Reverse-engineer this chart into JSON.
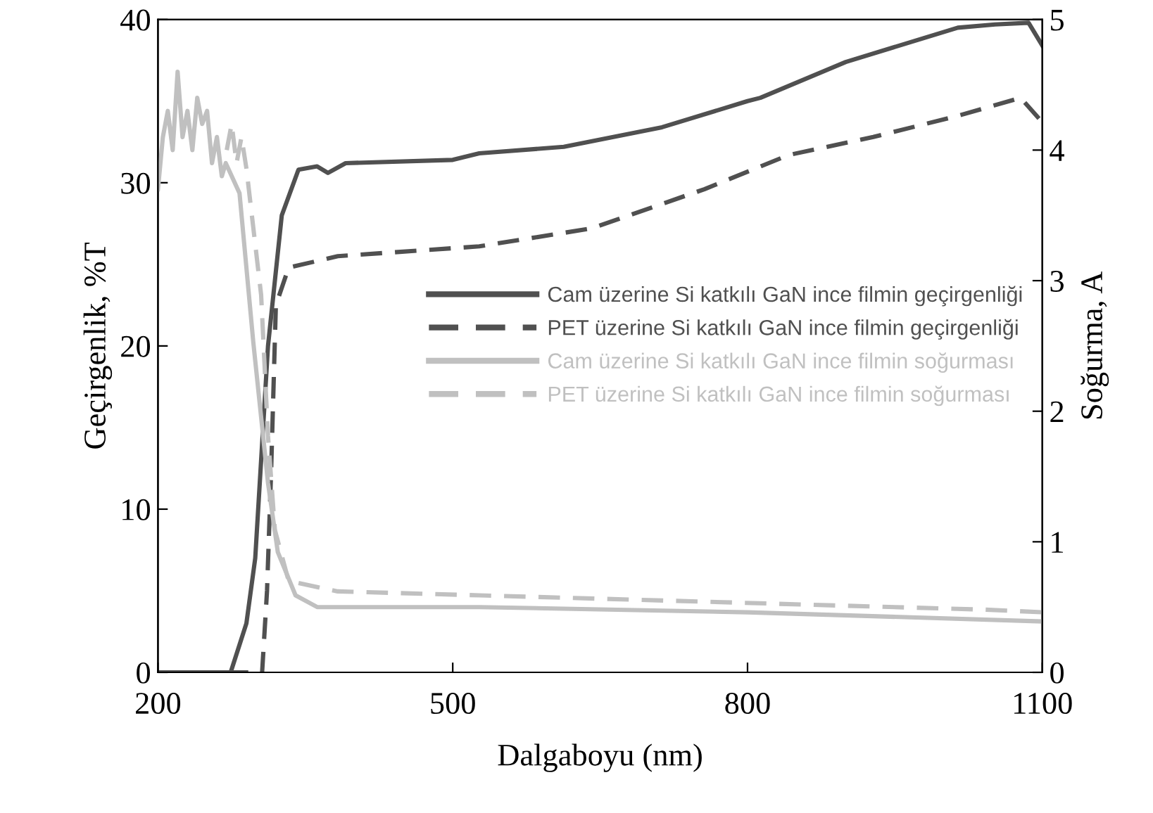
{
  "chart_data": {
    "type": "line",
    "xlabel": "Dalgaboyu (nm)",
    "ylabel": "Geçirgenlik, %T",
    "y2label": "Soğurma, A",
    "xlim": [
      200,
      1100
    ],
    "xticks": [
      200,
      500,
      800,
      1100
    ],
    "ylim": [
      0,
      40
    ],
    "yticks": [
      0,
      10,
      20,
      30,
      40
    ],
    "y2lim": [
      0,
      5
    ],
    "y2ticks": [
      0,
      1,
      2,
      3,
      4,
      5
    ],
    "grid": false,
    "legend": "center right",
    "series": [
      {
        "name": "Cam üzerine Si katkılı GaN ince filmin geçirgenliği",
        "color": "#505050",
        "line_style": "solid",
        "x": [
          200,
          274,
          290,
          299,
          312,
          326,
          343,
          362,
          373,
          391,
          500,
          527,
          613,
          713,
          800,
          813,
          900,
          1014,
          1052,
          1086,
          1100
        ],
        "values": [
          0,
          0,
          3,
          7,
          20,
          28,
          30.8,
          31,
          30.6,
          31.2,
          31.4,
          31.8,
          32.2,
          33.4,
          35,
          35.2,
          37.4,
          39.5,
          39.7,
          39.8,
          38.4
        ]
      },
      {
        "name": "PET üzerine Si katkılı GaN ince filmin geçirgenliği",
        "color": "#505050",
        "line_style": "dashed",
        "x": [
          200,
          306,
          311,
          315,
          320,
          333,
          383,
          527,
          641,
          756,
          842,
          928,
          1014,
          1078,
          1100
        ],
        "values": [
          0,
          0,
          5,
          12,
          22.5,
          24.8,
          25.5,
          26.1,
          27.2,
          29.6,
          31.7,
          32.8,
          34.1,
          35.2,
          33.7
        ]
      },
      {
        "name": "Cam üzerine Si katkılı GaN ince filmin soğurması",
        "color": "#c0c0c0",
        "line_style": "solid",
        "axis": "y2",
        "x": [
          200,
          205,
          210,
          215,
          220,
          225,
          230,
          235,
          240,
          245,
          250,
          255,
          260,
          265,
          269,
          283,
          297,
          312,
          322,
          340,
          362,
          500,
          527,
          800,
          1100
        ],
        "values": [
          3.7,
          4.1,
          4.3,
          4.0,
          4.6,
          4.1,
          4.3,
          4.0,
          4.4,
          4.2,
          4.3,
          3.9,
          4.1,
          3.8,
          3.9,
          3.67,
          2.53,
          1.45,
          0.92,
          0.59,
          0.5,
          0.5,
          0.5,
          0.46,
          0.39
        ]
      },
      {
        "name": "PET üzerine Si katkılı GaN ince filmin soğurması",
        "color": "#c0c0c0",
        "line_style": "dashed",
        "axis": "y2",
        "x": [
          270,
          275,
          280,
          285,
          290,
          305,
          312,
          319,
          333,
          383,
          527,
          1042,
          1100
        ],
        "values": [
          4.0,
          4.2,
          3.9,
          4.1,
          3.86,
          2.89,
          1.81,
          1.09,
          0.7,
          0.62,
          0.59,
          0.48,
          0.46
        ]
      }
    ]
  }
}
